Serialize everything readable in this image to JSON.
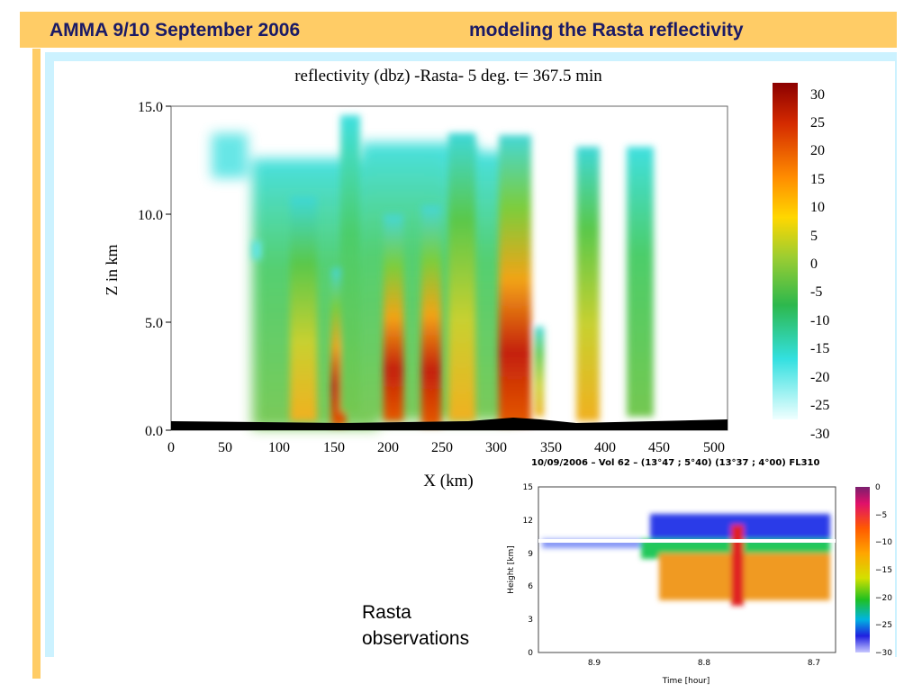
{
  "slide": {
    "title_left": "AMMA 9/10 September 2006",
    "title_right": "modeling the Rasta reflectivity",
    "accent_color": "#ffcc66",
    "content_bg_color": "#ccf2ff",
    "caption": "Rasta\nobservations"
  },
  "model_plot": {
    "title": "reflectivity (dbz)  -Rasta-    5 deg. t= 367.5 min",
    "xlabel": "X (km)",
    "ylabel": "Z in km",
    "xticks": [
      "0",
      "50",
      "100",
      "150",
      "200",
      "250",
      "300",
      "350",
      "400",
      "450",
      "500"
    ],
    "yticks": [
      "0.0",
      "5.0",
      "10.0",
      "15.0"
    ],
    "colorbar_labels": [
      "30",
      "25",
      "20",
      "15",
      "10",
      "5",
      "0",
      "-5",
      "-10",
      "-15",
      "-20",
      "-25",
      "-30"
    ]
  },
  "obs_plot": {
    "title": "10/09/2006 – Vol 62 – (13°47 ; 5°40) (13°37 ; 4°00) FL310",
    "xlabel": "Time [hour]",
    "ylabel": "Height [km]",
    "xticks": [
      "8.9",
      "8.8",
      "8.7"
    ],
    "yticks": [
      "0",
      "3",
      "6",
      "9",
      "12",
      "15"
    ],
    "colorbar_labels": [
      "0",
      "−5",
      "−10",
      "−15",
      "−20",
      "−25",
      "−30"
    ]
  },
  "chart_data": [
    {
      "type": "heatmap",
      "title": "reflectivity (dbz)  -Rasta-    5 deg. t= 367.5 min",
      "xlabel": "X (km)",
      "ylabel": "Z in km",
      "xlim": [
        0,
        520
      ],
      "ylim": [
        0,
        15
      ],
      "colorbar_range": [
        -30,
        30
      ],
      "colorbar_unit": "dbz",
      "grid": false,
      "columns": [
        {
          "x": 135,
          "top": 12.5,
          "core": 5
        },
        {
          "x": 155,
          "top": 7.5,
          "core": 30
        },
        {
          "x": 175,
          "top": 14,
          "core": -10
        },
        {
          "x": 210,
          "top": 12,
          "core": 10
        },
        {
          "x": 242,
          "top": 10,
          "core": 30
        },
        {
          "x": 275,
          "top": 13.5,
          "core": 0
        },
        {
          "x": 320,
          "top": 13,
          "core": 30
        },
        {
          "x": 340,
          "top": 4.5,
          "core": 10
        },
        {
          "x": 385,
          "top": 13,
          "core": 5
        },
        {
          "x": 425,
          "top": 12.5,
          "core": -5
        }
      ]
    },
    {
      "type": "heatmap",
      "title": "10/09/2006 – Vol 62 – (13°47 ; 5°40) (13°37 ; 4°00) FL310",
      "xlabel": "Time [hour]",
      "ylabel": "Height [km]",
      "xlim": [
        8.95,
        8.68
      ],
      "ylim": [
        0,
        15
      ],
      "colorbar_range": [
        -30,
        0
      ],
      "grid": false,
      "flight_level_km": 10
    }
  ]
}
